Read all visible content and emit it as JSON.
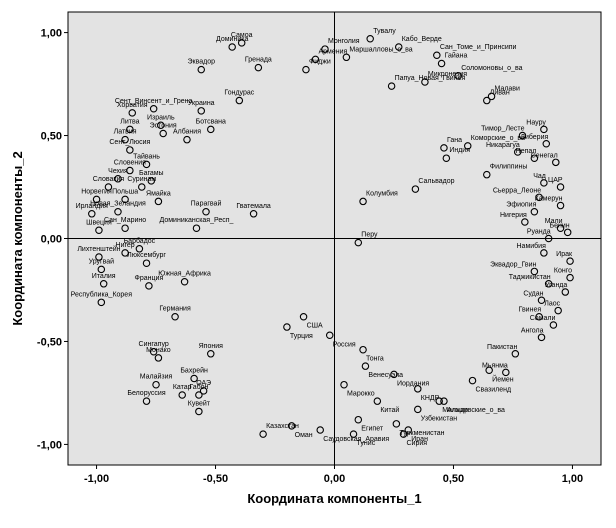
{
  "chart_data": {
    "type": "scatter",
    "xlabel": "Координата компоненты_1",
    "ylabel": "Координата компоненты_2",
    "xlim": [
      -1.12,
      1.12
    ],
    "ylim": [
      -1.1,
      1.1
    ],
    "x_ticks": [
      -1.0,
      -0.5,
      0.0,
      0.5,
      1.0
    ],
    "y_ticks": [
      -1.0,
      -0.5,
      0.0,
      0.5,
      1.0
    ],
    "x_tick_labels": [
      "-1,00",
      "-0,50",
      "0,00",
      "0,50",
      "1,00"
    ],
    "y_tick_labels": [
      "-1,00",
      "-0,50",
      "0,00",
      "0,50",
      "1,00"
    ],
    "reference_lines": {
      "x": 0.0,
      "y": 0.0
    },
    "grid": false,
    "colors": {
      "background": "#ffffff",
      "plot_area": "#e3e3e3",
      "marker_stroke": "#000000"
    },
    "points": [
      {
        "x": -0.43,
        "y": 0.93,
        "label": "Доминика"
      },
      {
        "x": -0.39,
        "y": 0.95,
        "label": "Самоа"
      },
      {
        "x": -0.32,
        "y": 0.83,
        "label": "Гренада"
      },
      {
        "x": -0.12,
        "y": 0.82,
        "label": "Фиджи"
      },
      {
        "x": -0.08,
        "y": 0.87,
        "label": "Армения"
      },
      {
        "x": -0.04,
        "y": 0.92,
        "label": "Монголия"
      },
      {
        "x": -0.56,
        "y": 0.82,
        "label": "Эквадор"
      },
      {
        "x": -0.4,
        "y": 0.67,
        "label": "Гондурас"
      },
      {
        "x": -0.76,
        "y": 0.63,
        "label": "Сент_Винсент_и_Грена"
      },
      {
        "x": -0.85,
        "y": 0.61,
        "label": "Хорватия"
      },
      {
        "x": -0.73,
        "y": 0.55,
        "label": "Израиль"
      },
      {
        "x": -0.56,
        "y": 0.62,
        "label": "Украина"
      },
      {
        "x": -0.86,
        "y": 0.53,
        "label": "Литва"
      },
      {
        "x": -0.88,
        "y": 0.48,
        "label": "Латвия"
      },
      {
        "x": -0.72,
        "y": 0.51,
        "label": "Эстония"
      },
      {
        "x": -0.62,
        "y": 0.48,
        "label": "Албания"
      },
      {
        "x": -0.52,
        "y": 0.53,
        "label": "Ботсвана"
      },
      {
        "x": -0.86,
        "y": 0.43,
        "label": "Сент_Люсия"
      },
      {
        "x": -0.79,
        "y": 0.36,
        "label": "Тайвань"
      },
      {
        "x": -0.86,
        "y": 0.33,
        "label": "Словения"
      },
      {
        "x": -0.77,
        "y": 0.28,
        "label": "Багамы"
      },
      {
        "x": -0.91,
        "y": 0.29,
        "label": "Чехия"
      },
      {
        "x": -0.95,
        "y": 0.25,
        "label": "Словакия"
      },
      {
        "x": -0.81,
        "y": 0.25,
        "label": "Суринам"
      },
      {
        "x": -1.0,
        "y": 0.19,
        "label": "Норвегия"
      },
      {
        "x": -0.88,
        "y": 0.19,
        "label": "Польша"
      },
      {
        "x": -0.74,
        "y": 0.18,
        "label": "Ямайка"
      },
      {
        "x": -1.02,
        "y": 0.12,
        "label": "Ирландия"
      },
      {
        "x": -0.91,
        "y": 0.13,
        "label": "Новая_Зеландия"
      },
      {
        "x": -0.54,
        "y": 0.13,
        "label": "Парагвай"
      },
      {
        "x": -0.34,
        "y": 0.12,
        "label": "Гватемала"
      },
      {
        "x": -0.99,
        "y": 0.04,
        "label": "Швеция"
      },
      {
        "x": -0.88,
        "y": 0.05,
        "label": "Сан_Марино"
      },
      {
        "x": -0.58,
        "y": 0.05,
        "label": "Доминиканская_Респ_"
      },
      {
        "x": -0.99,
        "y": -0.09,
        "label": "Лихтенштейн"
      },
      {
        "x": -0.88,
        "y": -0.07,
        "label": "Нигер"
      },
      {
        "x": -0.82,
        "y": -0.05,
        "label": "Барбадос"
      },
      {
        "x": -0.98,
        "y": -0.15,
        "label": "Уругвай"
      },
      {
        "x": -0.79,
        "y": -0.12,
        "label": "Люксембург"
      },
      {
        "x": -0.97,
        "y": -0.22,
        "label": "Италия"
      },
      {
        "x": -0.78,
        "y": -0.23,
        "label": "Франция"
      },
      {
        "x": -0.63,
        "y": -0.21,
        "label": "Южная_Африка"
      },
      {
        "x": -0.98,
        "y": -0.31,
        "label": "Республика_Корея"
      },
      {
        "x": -0.67,
        "y": -0.38,
        "label": "Германия"
      },
      {
        "x": -0.76,
        "y": -0.55,
        "label": "Сингапур"
      },
      {
        "x": -0.74,
        "y": -0.58,
        "label": "Монако"
      },
      {
        "x": -0.52,
        "y": -0.56,
        "label": "Япония"
      },
      {
        "x": -0.59,
        "y": -0.68,
        "label": "Бахрейн"
      },
      {
        "x": -0.75,
        "y": -0.71,
        "label": "Малайзия"
      },
      {
        "x": -0.55,
        "y": -0.74,
        "label": "ОАЭ"
      },
      {
        "x": -0.64,
        "y": -0.76,
        "label": "Катар"
      },
      {
        "x": -0.57,
        "y": -0.76,
        "label": "Габон"
      },
      {
        "x": -0.79,
        "y": -0.79,
        "label": "Белоруссия"
      },
      {
        "x": -0.57,
        "y": -0.84,
        "label": "Кувейт"
      },
      {
        "x": -0.3,
        "y": -0.95,
        "label": "Казахстан"
      },
      {
        "x": -0.18,
        "y": -0.91,
        "label": "Оман"
      },
      {
        "x": -0.06,
        "y": -0.93,
        "label": "Саудовская_Аравия"
      },
      {
        "x": -0.13,
        "y": -0.38,
        "label": "США"
      },
      {
        "x": -0.2,
        "y": -0.43,
        "label": "Турция"
      },
      {
        "x": -0.02,
        "y": -0.47,
        "label": "Россия"
      },
      {
        "x": 0.12,
        "y": -0.54,
        "label": "Тонга"
      },
      {
        "x": 0.13,
        "y": -0.62,
        "label": "Венесуэла"
      },
      {
        "x": 0.25,
        "y": -0.66,
        "label": "Иордания"
      },
      {
        "x": 0.04,
        "y": -0.71,
        "label": "Марокко"
      },
      {
        "x": 0.18,
        "y": -0.79,
        "label": "Китай"
      },
      {
        "x": 0.35,
        "y": -0.73,
        "label": "КНДР"
      },
      {
        "x": 0.1,
        "y": -0.88,
        "label": "Египет"
      },
      {
        "x": 0.08,
        "y": -0.95,
        "label": "Тунис"
      },
      {
        "x": 0.26,
        "y": -0.9,
        "label": "Туркменистан"
      },
      {
        "x": 0.35,
        "y": -0.83,
        "label": "Узбекистан"
      },
      {
        "x": 0.44,
        "y": -0.79,
        "label": "Мальдивские_о_ва"
      },
      {
        "x": 0.46,
        "y": -0.79,
        "label": "Алжир"
      },
      {
        "x": 0.29,
        "y": -0.95,
        "label": "Сирия"
      },
      {
        "x": 0.31,
        "y": -0.93,
        "label": "Иран"
      },
      {
        "x": 0.58,
        "y": -0.69,
        "label": "Свазиленд"
      },
      {
        "x": 0.65,
        "y": -0.64,
        "label": "Йемен"
      },
      {
        "x": 0.72,
        "y": -0.65,
        "label": "Мьянма"
      },
      {
        "x": 0.76,
        "y": -0.56,
        "label": "Пакистан"
      },
      {
        "x": 0.87,
        "y": -0.48,
        "label": "Ангола"
      },
      {
        "x": 0.92,
        "y": -0.42,
        "label": "Сомали"
      },
      {
        "x": 0.94,
        "y": -0.35,
        "label": "Лаос"
      },
      {
        "x": 0.86,
        "y": -0.38,
        "label": "Гвинея"
      },
      {
        "x": 0.87,
        "y": -0.3,
        "label": "Судан"
      },
      {
        "x": 0.97,
        "y": -0.26,
        "label": "Уганда"
      },
      {
        "x": 0.84,
        "y": -0.16,
        "label": "Эквадор_Гвин"
      },
      {
        "x": 0.9,
        "y": -0.22,
        "label": "Таджикистан"
      },
      {
        "x": 0.99,
        "y": -0.19,
        "label": "Конго"
      },
      {
        "x": 0.99,
        "y": -0.11,
        "label": "Ирак"
      },
      {
        "x": 0.88,
        "y": -0.07,
        "label": "Намибия"
      },
      {
        "x": 0.9,
        "y": 0.0,
        "label": "Руанда"
      },
      {
        "x": 0.98,
        "y": 0.03,
        "label": "Бенин"
      },
      {
        "x": 0.95,
        "y": 0.05,
        "label": "Мали"
      },
      {
        "x": 0.1,
        "y": -0.02,
        "label": "Перу"
      },
      {
        "x": 0.12,
        "y": 0.18,
        "label": "Колумбия"
      },
      {
        "x": 0.34,
        "y": 0.24,
        "label": "Сальвадор"
      },
      {
        "x": 0.47,
        "y": 0.39,
        "label": "Индия"
      },
      {
        "x": 0.46,
        "y": 0.44,
        "label": "Гана"
      },
      {
        "x": 0.56,
        "y": 0.45,
        "label": "Коморские_о_ва"
      },
      {
        "x": 0.64,
        "y": 0.31,
        "label": "Филиппины"
      },
      {
        "x": 0.77,
        "y": 0.42,
        "label": "Никарагуа"
      },
      {
        "x": 0.79,
        "y": 0.5,
        "label": "Тимор_Лесте"
      },
      {
        "x": 0.84,
        "y": 0.39,
        "label": "Непал"
      },
      {
        "x": 0.88,
        "y": 0.53,
        "label": "Науру"
      },
      {
        "x": 0.89,
        "y": 0.46,
        "label": "Либерия"
      },
      {
        "x": 0.93,
        "y": 0.37,
        "label": "Сенегал"
      },
      {
        "x": 0.88,
        "y": 0.27,
        "label": "Чад"
      },
      {
        "x": 0.95,
        "y": 0.25,
        "label": "ЦАР"
      },
      {
        "x": 0.86,
        "y": 0.2,
        "label": "Сьерра_Леоне"
      },
      {
        "x": 0.95,
        "y": 0.16,
        "label": "Камерун"
      },
      {
        "x": 0.84,
        "y": 0.13,
        "label": "Эфиопия"
      },
      {
        "x": 0.8,
        "y": 0.08,
        "label": "Нигерия"
      },
      {
        "x": 0.15,
        "y": 0.97,
        "label": "Тувалу"
      },
      {
        "x": 0.27,
        "y": 0.93,
        "label": "Кабо_Верде"
      },
      {
        "x": 0.43,
        "y": 0.89,
        "label": "Сан_Томе_и_Принсипи"
      },
      {
        "x": 0.45,
        "y": 0.85,
        "label": "Гайана"
      },
      {
        "x": 0.05,
        "y": 0.88,
        "label": "Маршалловы_о_ва"
      },
      {
        "x": 0.38,
        "y": 0.76,
        "label": "Микронезия"
      },
      {
        "x": 0.52,
        "y": 0.79,
        "label": "Соломоновы_о_ва"
      },
      {
        "x": 0.24,
        "y": 0.74,
        "label": "Папуа_Новая_Гвинея"
      },
      {
        "x": 0.64,
        "y": 0.67,
        "label": "Ливан"
      },
      {
        "x": 0.66,
        "y": 0.69,
        "label": "Малави"
      }
    ]
  }
}
